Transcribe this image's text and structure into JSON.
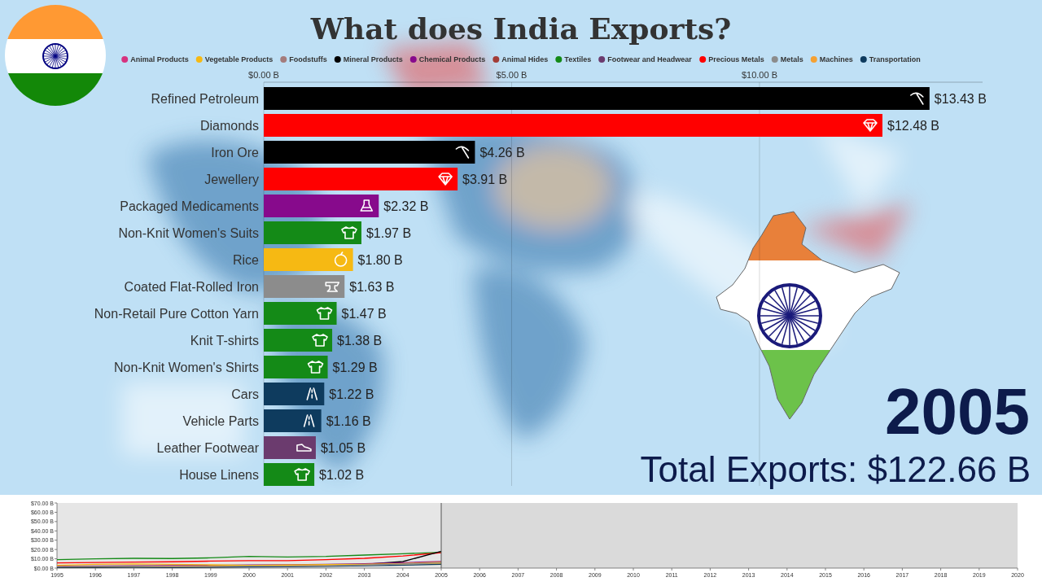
{
  "chart_data": [
    {
      "type": "bar",
      "orientation": "horizontal",
      "title": "What does India Exports?",
      "categories": [
        "Refined Petroleum",
        "Diamonds",
        "Iron Ore",
        "Jewellery",
        "Packaged Medicaments",
        "Non-Knit Women's Suits",
        "Rice",
        "Coated Flat-Rolled Iron",
        "Non-Retail Pure Cotton Yarn",
        "Knit T-shirts",
        "Non-Knit Women's Shirts",
        "Cars",
        "Vehicle Parts",
        "Leather Footwear",
        "House Linens"
      ],
      "series": [
        {
          "name": "Animal Products",
          "color": "#d6337f",
          "values": [
            null,
            null,
            null,
            null,
            null,
            null,
            null,
            null,
            null,
            null,
            null,
            null,
            null,
            null,
            null
          ],
          "value_labels": [
            null,
            null,
            null,
            null,
            null,
            null,
            null,
            null,
            null,
            null,
            null,
            null,
            null,
            null,
            null
          ]
        },
        {
          "name": "Vegetable Products",
          "color": "#f6b913",
          "values": [
            null,
            null,
            null,
            null,
            null,
            null,
            1.8,
            null,
            null,
            null,
            null,
            null,
            null,
            null,
            null
          ],
          "value_labels": [
            null,
            null,
            null,
            null,
            null,
            null,
            "$1.80 B",
            null,
            null,
            null,
            null,
            null,
            null,
            null,
            null
          ]
        },
        {
          "name": "Foodstuffs",
          "color": "#a47c7c",
          "values": [
            null,
            null,
            null,
            null,
            null,
            null,
            null,
            null,
            null,
            null,
            null,
            null,
            null,
            null,
            null
          ],
          "value_labels": [
            null,
            null,
            null,
            null,
            null,
            null,
            null,
            null,
            null,
            null,
            null,
            null,
            null,
            null,
            null
          ]
        },
        {
          "name": "Mineral Products",
          "color": "#000000",
          "values": [
            13.43,
            null,
            4.26,
            null,
            null,
            null,
            null,
            null,
            null,
            null,
            null,
            null,
            null,
            null,
            null
          ],
          "value_labels": [
            "$13.43 B",
            null,
            "$4.26 B",
            null,
            null,
            null,
            null,
            null,
            null,
            null,
            null,
            null,
            null,
            null,
            null
          ]
        },
        {
          "name": "Chemical Products",
          "color": "#870a8c",
          "values": [
            null,
            null,
            null,
            null,
            2.32,
            null,
            null,
            null,
            null,
            null,
            null,
            null,
            null,
            null,
            null
          ],
          "value_labels": [
            null,
            null,
            null,
            null,
            "$2.32 B",
            null,
            null,
            null,
            null,
            null,
            null,
            null,
            null,
            null,
            null
          ]
        },
        {
          "name": "Animal Hides",
          "color": "#a23b36",
          "values": [
            null,
            null,
            null,
            null,
            null,
            null,
            null,
            null,
            null,
            null,
            null,
            null,
            null,
            null,
            null
          ],
          "value_labels": [
            null,
            null,
            null,
            null,
            null,
            null,
            null,
            null,
            null,
            null,
            null,
            null,
            null,
            null,
            null
          ]
        },
        {
          "name": "Textiles",
          "color": "#148a17",
          "values": [
            null,
            null,
            null,
            null,
            null,
            1.97,
            null,
            null,
            1.47,
            1.38,
            1.29,
            null,
            null,
            null,
            1.02
          ],
          "value_labels": [
            null,
            null,
            null,
            null,
            null,
            "$1.97 B",
            null,
            null,
            "$1.47 B",
            "$1.38 B",
            "$1.29 B",
            null,
            null,
            null,
            "$1.02 B"
          ]
        },
        {
          "name": "Footwear and Headwear",
          "color": "#6b3b6e",
          "values": [
            null,
            null,
            null,
            null,
            null,
            null,
            null,
            null,
            null,
            null,
            null,
            null,
            null,
            1.05,
            null
          ],
          "value_labels": [
            null,
            null,
            null,
            null,
            null,
            null,
            null,
            null,
            null,
            null,
            null,
            null,
            null,
            "$1.05 B",
            null
          ]
        },
        {
          "name": "Precious Metals",
          "color": "#ff0000",
          "values": [
            null,
            12.48,
            null,
            3.91,
            null,
            null,
            null,
            null,
            null,
            null,
            null,
            null,
            null,
            null,
            null
          ],
          "value_labels": [
            null,
            "$12.48 B",
            null,
            "$3.91 B",
            null,
            null,
            null,
            null,
            null,
            null,
            null,
            null,
            null,
            null,
            null
          ]
        },
        {
          "name": "Metals",
          "color": "#8c8c8c",
          "values": [
            null,
            null,
            null,
            null,
            null,
            null,
            null,
            1.63,
            null,
            null,
            null,
            null,
            null,
            null,
            null
          ],
          "value_labels": [
            null,
            null,
            null,
            null,
            null,
            null,
            null,
            "$1.63 B",
            null,
            null,
            null,
            null,
            null,
            null,
            null
          ]
        },
        {
          "name": "Machines",
          "color": "#f5a132",
          "values": [
            null,
            null,
            null,
            null,
            null,
            null,
            null,
            null,
            null,
            null,
            null,
            null,
            null,
            null,
            null
          ],
          "value_labels": [
            null,
            null,
            null,
            null,
            null,
            null,
            null,
            null,
            null,
            null,
            null,
            null,
            null,
            null,
            null
          ]
        },
        {
          "name": "Transportation",
          "color": "#0e3b5e",
          "values": [
            null,
            null,
            null,
            null,
            null,
            null,
            null,
            null,
            null,
            null,
            null,
            1.22,
            1.16,
            null,
            null
          ],
          "value_labels": [
            null,
            null,
            null,
            null,
            null,
            null,
            null,
            null,
            null,
            null,
            null,
            "$1.22 B",
            "$1.16 B",
            null,
            null
          ]
        }
      ],
      "xlim": [
        0,
        14.5
      ],
      "xticks": [
        {
          "value": 0,
          "label": "$0.00 B"
        },
        {
          "value": 5,
          "label": "$5.00 B"
        },
        {
          "value": 10,
          "label": "$10.00 B"
        }
      ],
      "grid": true,
      "data_labels": true,
      "legend": "top",
      "annotations": [
        {
          "text": "2005"
        },
        {
          "text": "Total Exports: $122.66 B"
        }
      ]
    },
    {
      "type": "line",
      "x": [
        1995,
        1996,
        1997,
        1998,
        1999,
        2000,
        2001,
        2002,
        2003,
        2004,
        2005
      ],
      "xlim": [
        1995,
        2020
      ],
      "xticks": [
        1995,
        1996,
        1997,
        1998,
        1999,
        2000,
        2001,
        2002,
        2003,
        2004,
        2005,
        2006,
        2007,
        2008,
        2009,
        2010,
        2011,
        2012,
        2013,
        2014,
        2015,
        2016,
        2017,
        2018,
        2019,
        2020
      ],
      "ylim": [
        0,
        70
      ],
      "yticks": [
        {
          "value": 0,
          "label": "$0.00 B"
        },
        {
          "value": 10,
          "label": "$10.00 B"
        },
        {
          "value": 20,
          "label": "$20.00 B"
        },
        {
          "value": 30,
          "label": "$30.00 B"
        },
        {
          "value": 40,
          "label": "$40.00 B"
        },
        {
          "value": 50,
          "label": "$50.00 B"
        },
        {
          "value": 60,
          "label": "$60.00 B"
        },
        {
          "value": 70,
          "label": "$70.00 B"
        }
      ],
      "series": [
        {
          "color": "#148a17",
          "values": [
            9,
            10,
            10.5,
            10.3,
            11,
            12.5,
            12,
            12.5,
            14,
            15.5,
            17
          ]
        },
        {
          "color": "#ff0000",
          "values": [
            5.5,
            6,
            6.5,
            6.8,
            7.5,
            8,
            8,
            9,
            10.5,
            13,
            16.5
          ]
        },
        {
          "color": "#000000",
          "values": [
            0.7,
            0.8,
            1,
            0.8,
            1,
            1.5,
            2,
            3,
            4,
            7,
            18
          ]
        },
        {
          "color": "#870a8c",
          "values": [
            2,
            2.3,
            2.5,
            2.7,
            3,
            3.3,
            3.6,
            4,
            4.7,
            5.8,
            7
          ]
        },
        {
          "color": "#f5a132",
          "values": [
            1.5,
            1.6,
            1.8,
            1.8,
            2,
            2.3,
            2.5,
            3,
            3.8,
            5,
            6.5
          ]
        },
        {
          "color": "#f6b913",
          "values": [
            3,
            4,
            4.5,
            4,
            3.5,
            3,
            3.3,
            3.8,
            4,
            4.5,
            5
          ]
        },
        {
          "color": "#0e3b5e",
          "values": [
            1,
            1.2,
            1.3,
            1,
            1.2,
            1.3,
            1.4,
            1.8,
            2.5,
            3.2,
            4
          ]
        },
        {
          "color": "#8c8c8c",
          "values": [
            1.5,
            1.6,
            1.7,
            1.5,
            1.7,
            2,
            2,
            2.5,
            3.3,
            4.5,
            5.5
          ]
        }
      ]
    }
  ]
}
